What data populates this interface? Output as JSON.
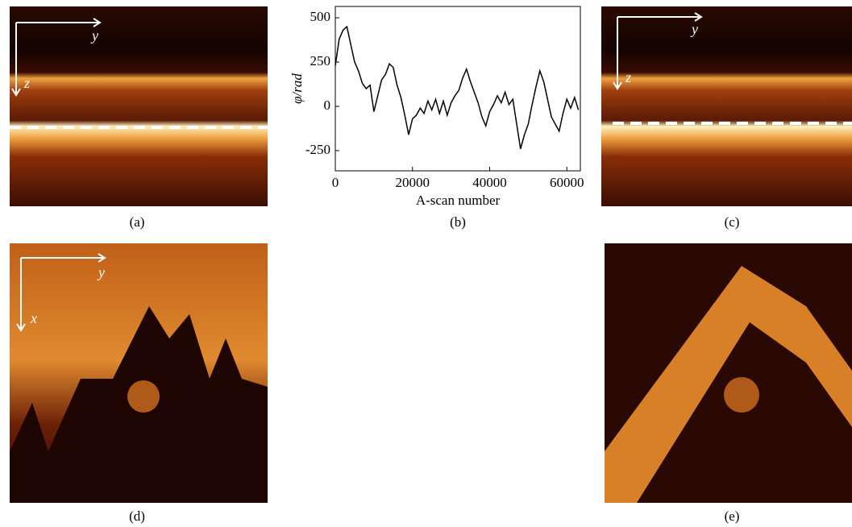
{
  "panels": [
    {
      "label": "(a)",
      "axes": [
        "y",
        "z"
      ]
    },
    {
      "label": "(b)"
    },
    {
      "label": "(c)",
      "axes": [
        "y",
        "z"
      ]
    },
    {
      "label": "(d)",
      "axes": [
        "y",
        "x"
      ]
    },
    {
      "label": "(e)"
    }
  ],
  "chart_data": {
    "type": "line",
    "x_label": "A-scan number",
    "y_label": "φ/rad",
    "color": "#000000",
    "x": [
      0,
      1000,
      2000,
      3000,
      3500,
      4000,
      5000,
      6000,
      7000,
      8000,
      9000,
      10000,
      11000,
      12000,
      13000,
      14000,
      15000,
      16000,
      17000,
      18000,
      19000,
      20000,
      21000,
      22000,
      23000,
      24000,
      25000,
      26000,
      27000,
      28000,
      29000,
      30000,
      31000,
      32000,
      33000,
      34000,
      35000,
      36000,
      37000,
      38000,
      39000,
      40000,
      41000,
      42000,
      43000,
      44000,
      45000,
      46000,
      47000,
      48000,
      49000,
      50000,
      51000,
      52000,
      53000,
      54000,
      55000,
      56000,
      57000,
      58000,
      59000,
      60000,
      61000,
      62000,
      63000
    ],
    "values": [
      230,
      380,
      430,
      450,
      400,
      350,
      250,
      200,
      130,
      100,
      120,
      -30,
      60,
      150,
      180,
      240,
      220,
      120,
      50,
      -50,
      -160,
      -70,
      -50,
      -10,
      -40,
      30,
      -20,
      40,
      -40,
      30,
      -50,
      20,
      60,
      90,
      160,
      210,
      140,
      80,
      20,
      -60,
      -110,
      -30,
      10,
      60,
      20,
      80,
      10,
      40,
      -100,
      -240,
      -160,
      -100,
      10,
      110,
      200,
      140,
      40,
      -60,
      -100,
      -140,
      -40,
      40,
      -10,
      50,
      -20
    ],
    "xlim": [
      0,
      63500
    ],
    "ylim": [
      -364,
      564
    ],
    "xticks": [
      0,
      20000,
      40000,
      60000
    ],
    "yticks": [
      -250,
      0,
      250,
      500
    ]
  }
}
